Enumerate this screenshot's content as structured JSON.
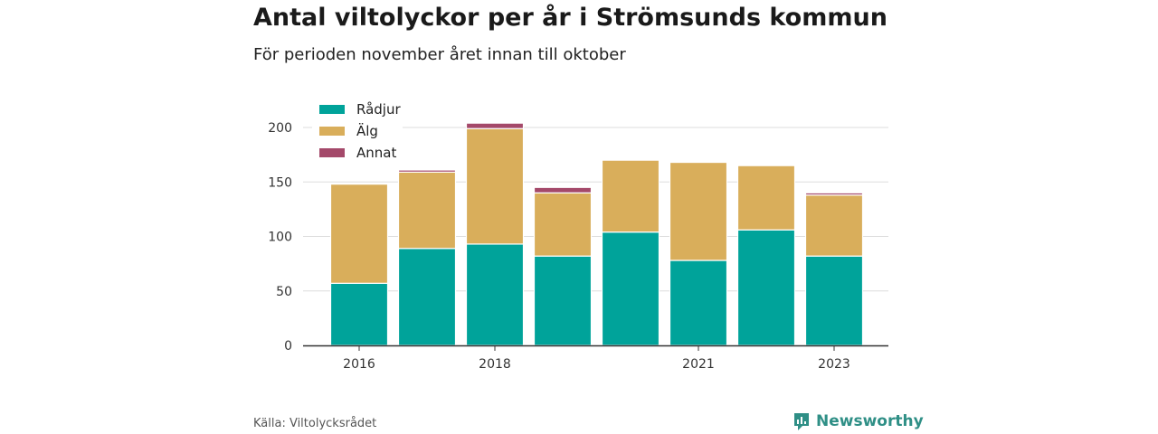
{
  "header": {
    "title": "Antal viltolyckor per år i Strömsunds kommun",
    "subtitle": "För perioden november året innan till oktober"
  },
  "footer": {
    "source": "Källa: Viltolycksrådet",
    "brand": "Newsworthy",
    "brand_icon": "newsworthy-logo-icon"
  },
  "chart_data": {
    "type": "bar",
    "stacked": true,
    "categories": [
      "2016",
      "2017",
      "2018",
      "2019",
      "2020",
      "2021",
      "2022",
      "2023"
    ],
    "x_tick_labels": [
      "2016",
      "2018",
      "2021",
      "2023"
    ],
    "series": [
      {
        "name": "Rådjur",
        "color": "#00a39a",
        "values": [
          57,
          89,
          93,
          82,
          104,
          78,
          106,
          82
        ]
      },
      {
        "name": "Älg",
        "color": "#d9ae5b",
        "values": [
          91,
          70,
          106,
          58,
          66,
          90,
          59,
          56
        ]
      },
      {
        "name": "Annat",
        "color": "#a4496a",
        "values": [
          0,
          2,
          5,
          5,
          0,
          0,
          0,
          2
        ]
      }
    ],
    "ylim": [
      0,
      210
    ],
    "y_ticks": [
      0,
      50,
      100,
      150,
      200
    ],
    "grid": true,
    "legend_position": "top-left"
  }
}
